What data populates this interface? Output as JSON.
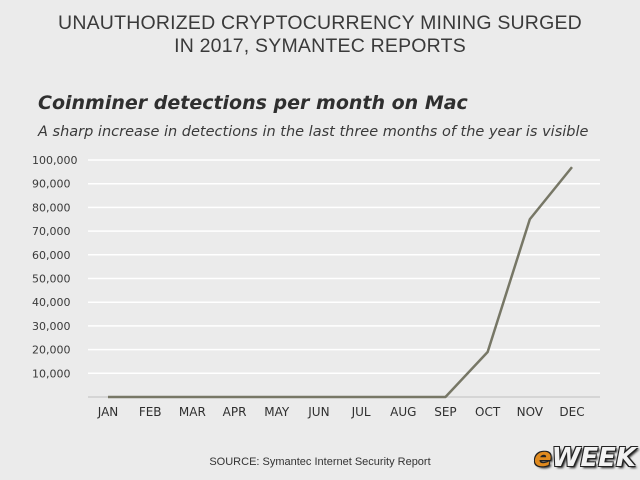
{
  "headline": {
    "line1": "UNAUTHORIZED CRYPTOCURRENCY MINING SURGED",
    "line2": "IN 2017, SYMANTEC REPORTS"
  },
  "chart_data": {
    "type": "line",
    "title": "Coinminer detections per month on Mac",
    "subtitle": "A sharp increase in detections in the last three months of the year is visible",
    "categories": [
      "JAN",
      "FEB",
      "MAR",
      "APR",
      "MAY",
      "JUN",
      "JUL",
      "AUG",
      "SEP",
      "OCT",
      "NOV",
      "DEC"
    ],
    "series": [
      {
        "values": [
          0,
          0,
          0,
          0,
          0,
          0,
          0,
          0,
          0,
          19000,
          75000,
          97000
        ]
      }
    ],
    "yticks": [
      "10,000",
      "20,000",
      "30,000",
      "40,000",
      "50,000",
      "60,000",
      "70,000",
      "80,000",
      "90,000",
      "100,000"
    ],
    "ylim": [
      0,
      100000
    ],
    "grid": true,
    "line_color": "#777766",
    "grid_color": "#ffffff",
    "xlabel": "",
    "ylabel": ""
  },
  "source": "SOURCE: Symantec Internet Security Report",
  "logo": {
    "e": "e",
    "rest": "WEEK"
  }
}
